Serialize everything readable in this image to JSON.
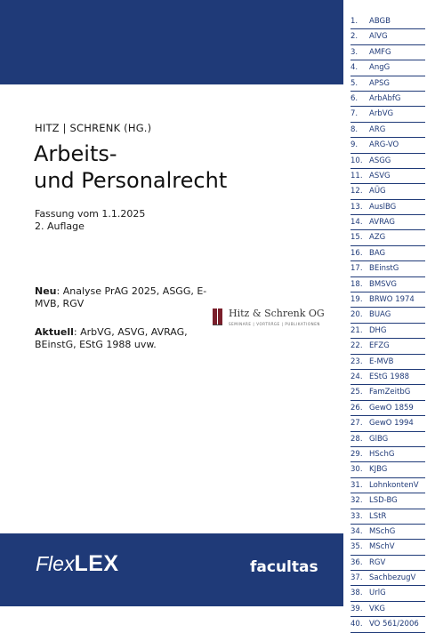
{
  "cover": {
    "editors": "HITZ | SCHRENK (HG.)",
    "title_line1": "Arbeits-",
    "title_line2": "und Personalrecht",
    "edition_date": "Fassung vom 1.1.2025",
    "edition_number": "2. Auflage",
    "new_label": "Neu",
    "new_text": ": Analyse PrAG 2025, ASGG, E-MVB, RGV",
    "current_label": "Aktuell",
    "current_text": ": ArbVG, ASVG, AVRAG, BEinstG, EStG 1988 uvw.",
    "publisher_logo_name": "Hitz & Schrenk OG",
    "publisher_logo_tagline": "SEMINARE | VORTRÄGE | PUBLIKATIONEN",
    "brand_italic": "Flex",
    "brand_bold": "LEX",
    "imprint": "facultas"
  },
  "colors": {
    "cover_blue": "#1f3a78",
    "index_text": "#1f3a78"
  },
  "law_index": [
    {
      "num": "1.",
      "name": "ABGB"
    },
    {
      "num": "2.",
      "name": "AlVG"
    },
    {
      "num": "3.",
      "name": "AMFG"
    },
    {
      "num": "4.",
      "name": "AngG"
    },
    {
      "num": "5.",
      "name": "APSG"
    },
    {
      "num": "6.",
      "name": "ArbAbfG"
    },
    {
      "num": "7.",
      "name": "ArbVG"
    },
    {
      "num": "8.",
      "name": "ARG"
    },
    {
      "num": "9.",
      "name": "ARG-VO"
    },
    {
      "num": "10.",
      "name": "ASGG"
    },
    {
      "num": "11.",
      "name": "ASVG"
    },
    {
      "num": "12.",
      "name": "AÜG"
    },
    {
      "num": "13.",
      "name": "AuslBG"
    },
    {
      "num": "14.",
      "name": "AVRAG"
    },
    {
      "num": "15.",
      "name": "AZG"
    },
    {
      "num": "16.",
      "name": "BAG"
    },
    {
      "num": "17.",
      "name": "BEinstG"
    },
    {
      "num": "18.",
      "name": "BMSVG"
    },
    {
      "num": "19.",
      "name": "BRWO 1974"
    },
    {
      "num": "20.",
      "name": "BUAG"
    },
    {
      "num": "21.",
      "name": "DHG"
    },
    {
      "num": "22.",
      "name": "EFZG"
    },
    {
      "num": "23.",
      "name": "E-MVB"
    },
    {
      "num": "24.",
      "name": "EStG 1988"
    },
    {
      "num": "25.",
      "name": "FamZeitbG"
    },
    {
      "num": "26.",
      "name": "GewO 1859"
    },
    {
      "num": "27.",
      "name": "GewO 1994"
    },
    {
      "num": "28.",
      "name": "GlBG"
    },
    {
      "num": "29.",
      "name": "HSchG"
    },
    {
      "num": "30.",
      "name": "KJBG"
    },
    {
      "num": "31.",
      "name": "LohnkontenV"
    },
    {
      "num": "32.",
      "name": "LSD-BG"
    },
    {
      "num": "33.",
      "name": "LStR"
    },
    {
      "num": "34.",
      "name": "MSchG"
    },
    {
      "num": "35.",
      "name": "MSchV"
    },
    {
      "num": "36.",
      "name": "RGV"
    },
    {
      "num": "37.",
      "name": "SachbezugV"
    },
    {
      "num": "38.",
      "name": "UrlG"
    },
    {
      "num": "39.",
      "name": "VKG"
    },
    {
      "num": "40.",
      "name": "VO 561/2006"
    }
  ]
}
